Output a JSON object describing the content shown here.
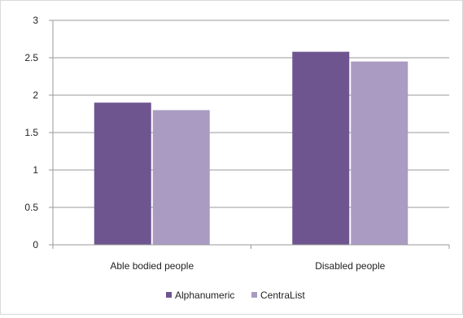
{
  "chart_data": {
    "type": "bar",
    "title": "",
    "xlabel": "",
    "ylabel": "",
    "categories": [
      "Able bodied people",
      "Disabled people"
    ],
    "series": [
      {
        "name": "Alphanumeric",
        "values": [
          1.9,
          2.58
        ],
        "color": "#6f5590"
      },
      {
        "name": "CentraList",
        "values": [
          1.8,
          2.45
        ],
        "color": "#a99bc2"
      }
    ],
    "ylim": [
      0,
      3
    ],
    "yticks": [
      0,
      0.5,
      1,
      1.5,
      2,
      2.5,
      3
    ],
    "ytick_labels": [
      "0",
      "0.5",
      "1",
      "1.5",
      "2",
      "2.5",
      "3"
    ],
    "grid": true,
    "legend_position": "bottom"
  }
}
